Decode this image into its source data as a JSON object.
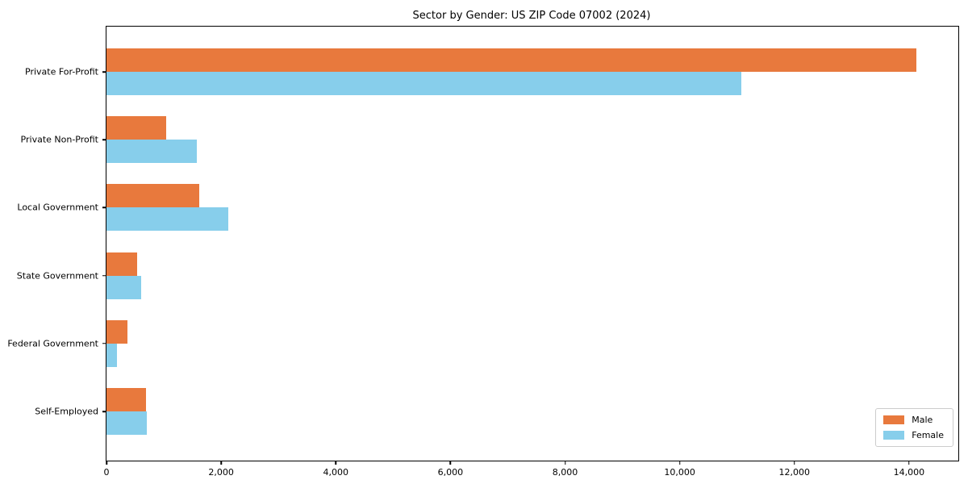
{
  "chart_data": {
    "type": "bar",
    "orientation": "horizontal",
    "title": "Sector by Gender: US ZIP Code 07002 (2024)",
    "categories": [
      "Private For-Profit",
      "Private Non-Profit",
      "Local Government",
      "State Government",
      "Federal Government",
      "Self-Employed"
    ],
    "series": [
      {
        "name": "Male",
        "color": "#e8793d",
        "values": [
          14130,
          1040,
          1620,
          535,
          365,
          690
        ]
      },
      {
        "name": "Female",
        "color": "#87ceeb",
        "values": [
          11070,
          1580,
          2130,
          605,
          185,
          705
        ]
      }
    ],
    "xlim": [
      0,
      14860
    ],
    "x_ticks": [
      0,
      2000,
      4000,
      6000,
      8000,
      10000,
      12000,
      14000
    ],
    "x_tick_labels": [
      "0",
      "2,000",
      "4,000",
      "6,000",
      "8,000",
      "10,000",
      "12,000",
      "14,000"
    ],
    "grid": "off",
    "legend": {
      "position": "lower right",
      "entries": [
        "Male",
        "Female"
      ]
    },
    "colors": {
      "background": "#ffffff",
      "spine": "#000000",
      "legend_border": "#cccccc"
    }
  }
}
